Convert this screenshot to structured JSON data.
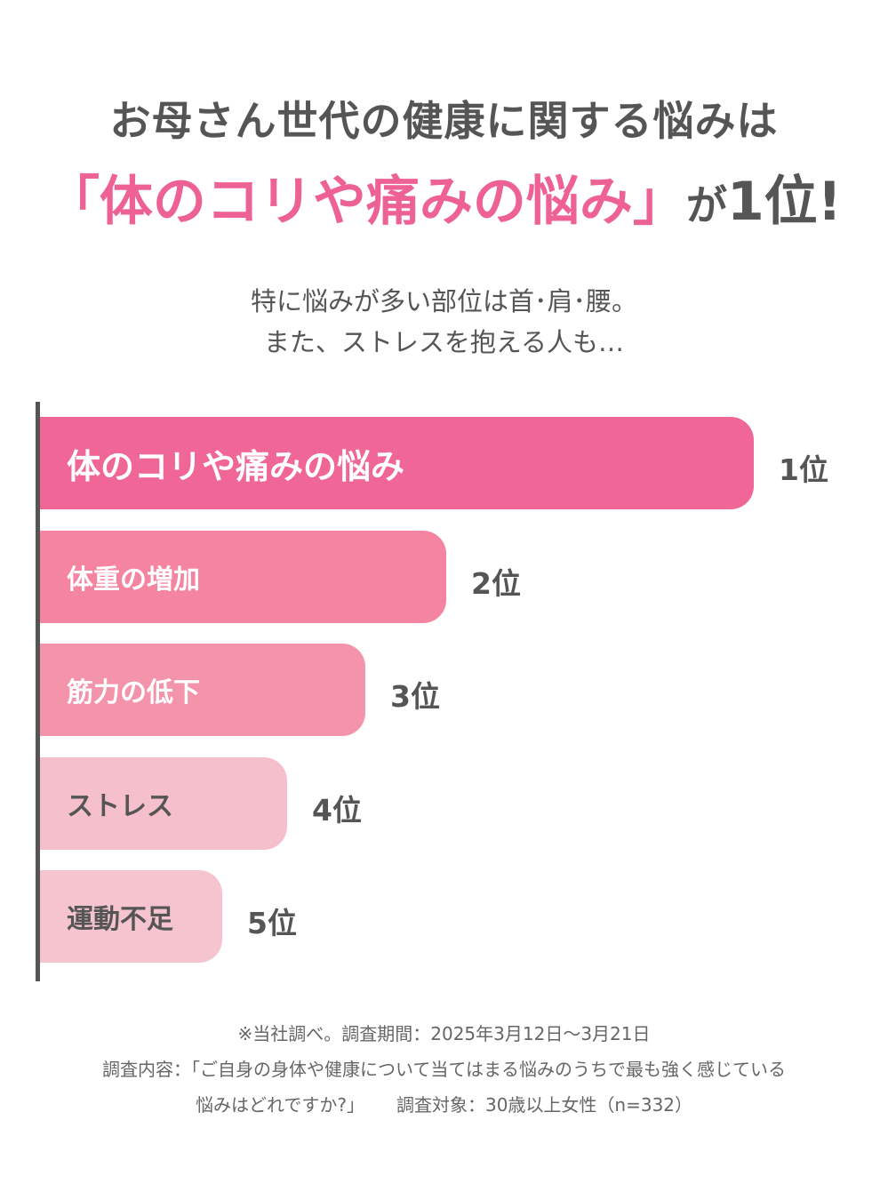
{
  "header": {
    "title_line1": "お母さん世代の健康に関する悩みは",
    "title_highlight": "「体のコリや痛みの悩み」",
    "title_suffix_ga": "が",
    "title_suffix_rank": "1位!"
  },
  "subtitle": {
    "line1": "特に悩みが多い部位は首･肩･腰。",
    "line2": "また、ストレスを抱える人も…"
  },
  "chart_data": {
    "type": "bar",
    "orientation": "horizontal",
    "categories": [
      "体のコリや痛みの悩み",
      "体重の増加",
      "筋力の低下",
      "ストレス",
      "運動不足"
    ],
    "ranks": [
      "1位",
      "2位",
      "3位",
      "4位",
      "5位"
    ],
    "colors": [
      "#f06696",
      "#f4849f",
      "#f494ab",
      "#f5bfcc",
      "#f5c4cf"
    ],
    "label_colors": [
      "#ffffff",
      "#ffffff",
      "#ffffff",
      "#555555",
      "#555555"
    ]
  },
  "footnote": {
    "line1": "※当社調べ。調査期間：2025年3月12日～3月21日",
    "line2": "調査内容：「ご自身の身体や健康について当てはまる悩みのうちで最も強く感じている",
    "line3a": "悩みはどれですか?」",
    "line3b": "調査対象：30歳以上女性（n=332）"
  }
}
